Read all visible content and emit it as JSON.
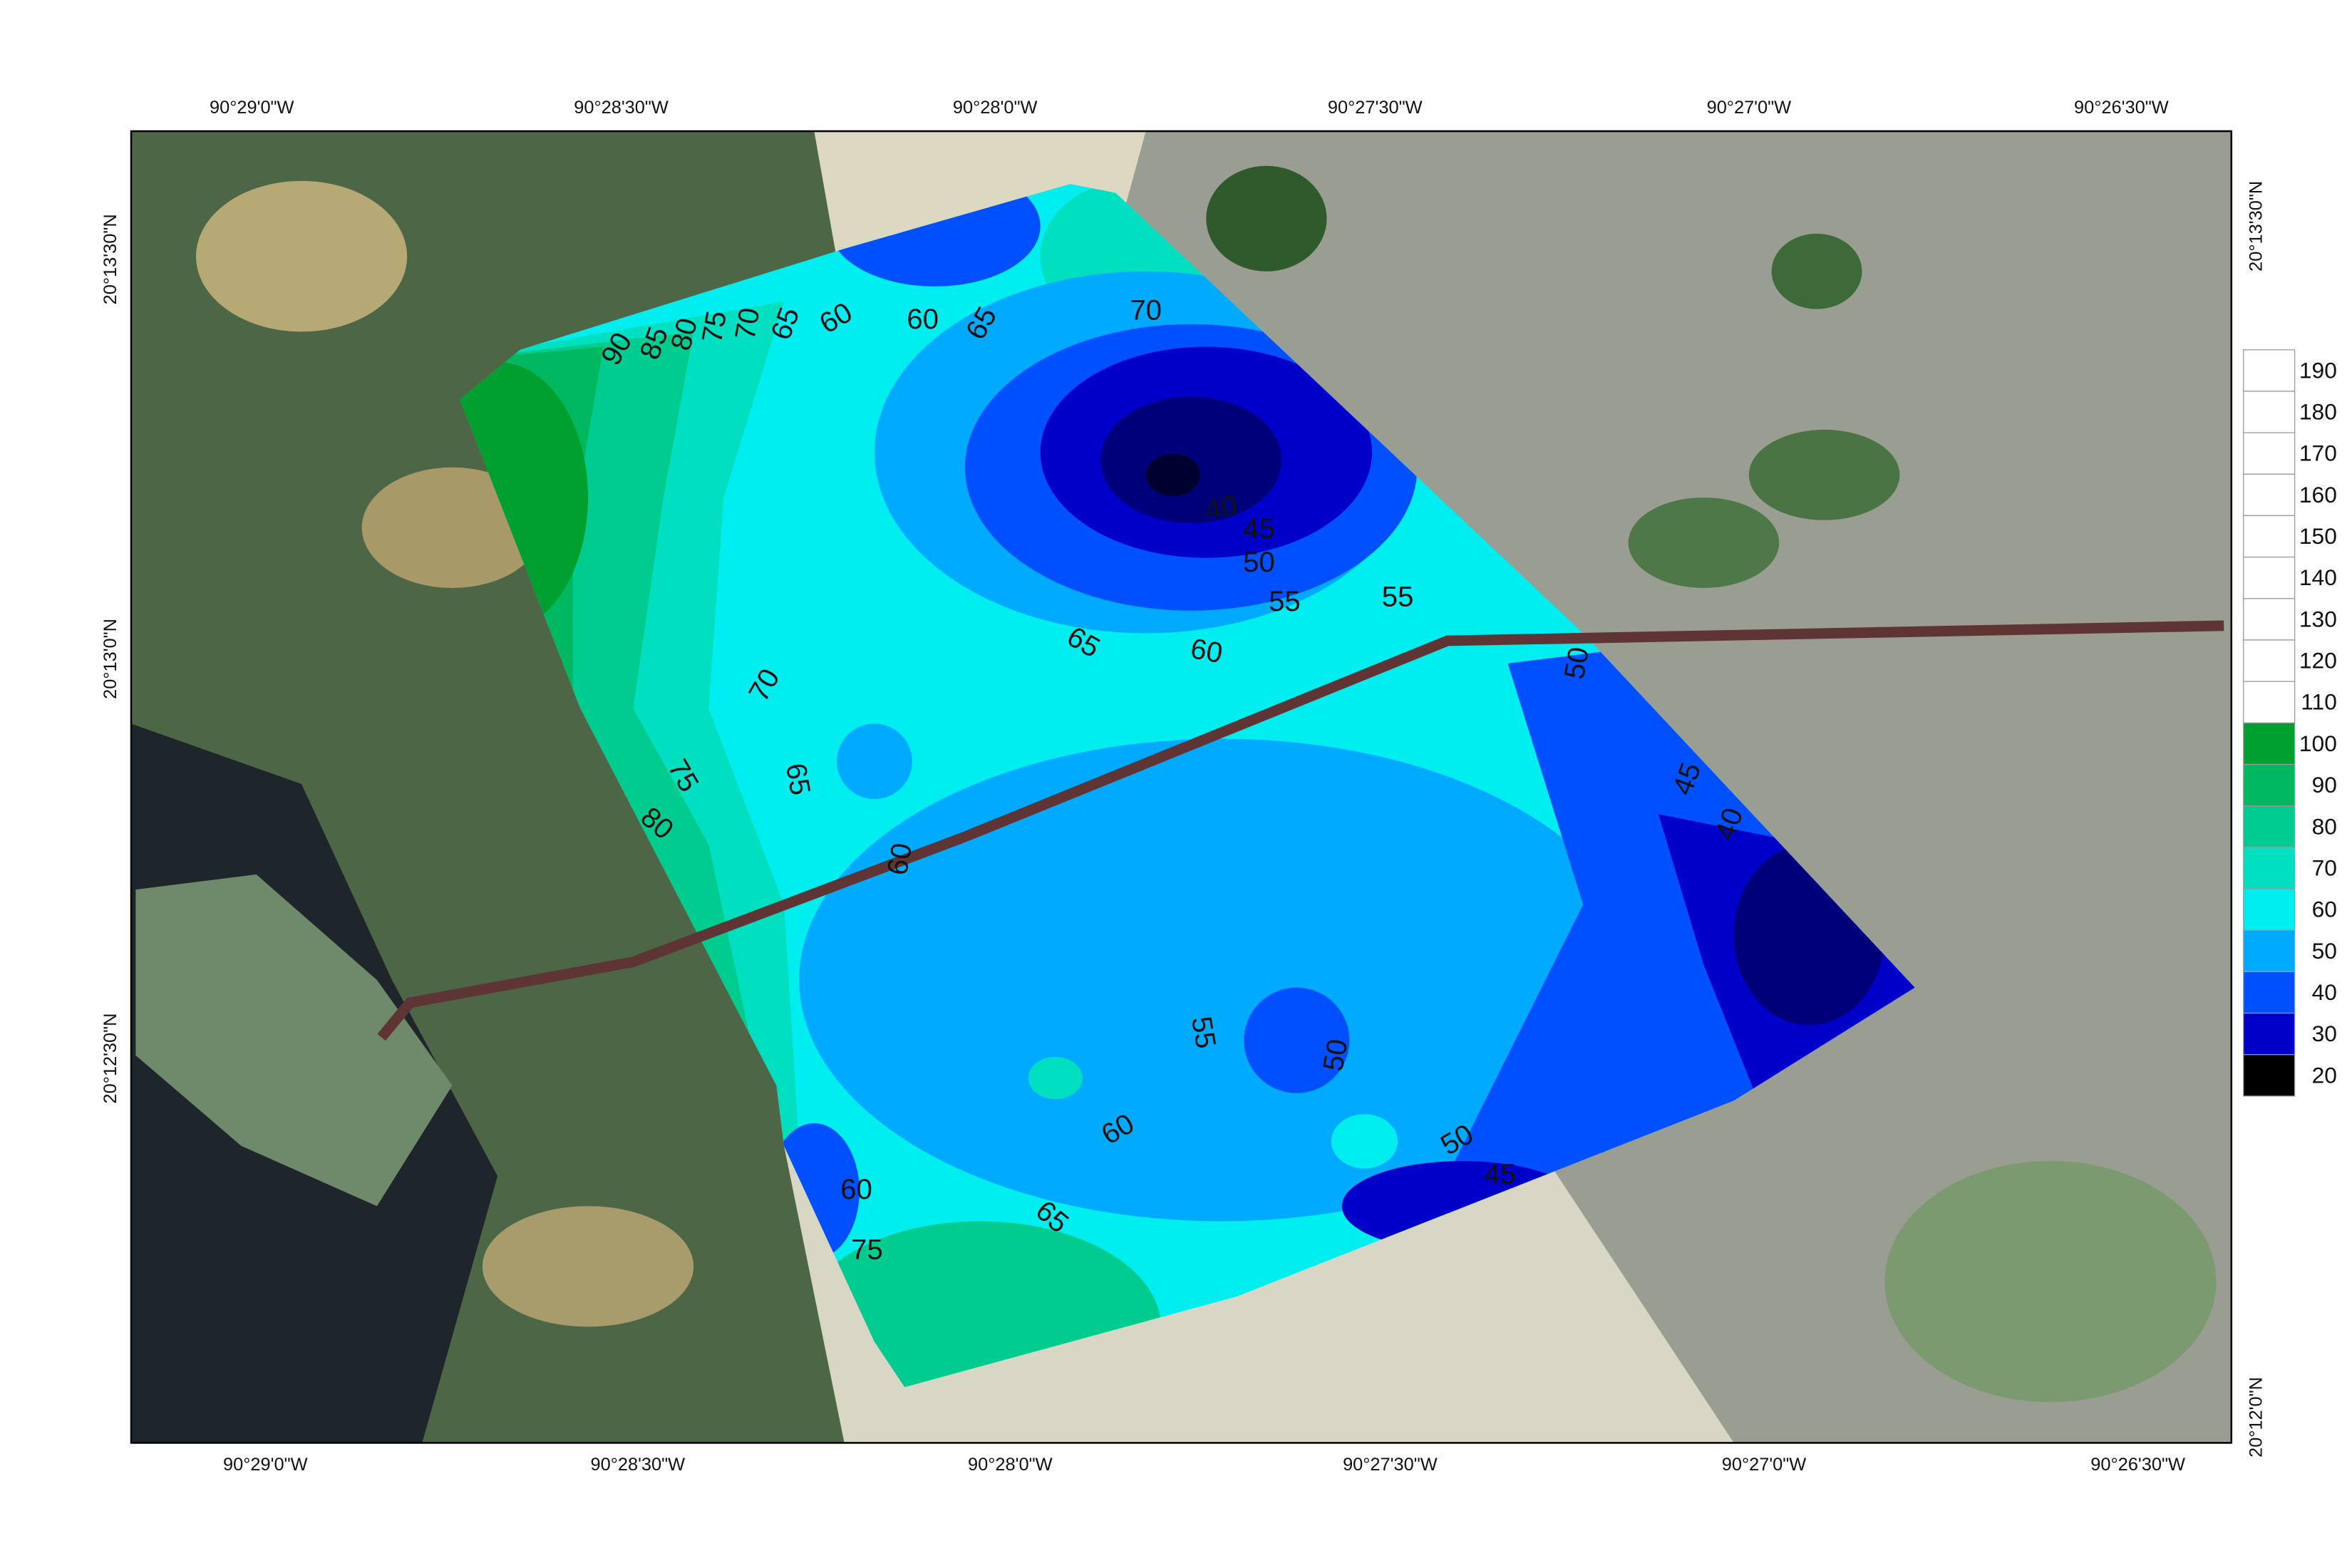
{
  "map": {
    "top_longitude_labels": [
      "90°29'0\"W",
      "90°28'30\"W",
      "90°28'0\"W",
      "90°27'30\"W",
      "90°27'0\"W",
      "90°26'30\"W"
    ],
    "bottom_longitude_labels": [
      "90°29'0\"W",
      "90°28'30\"W",
      "90°28'0\"W",
      "90°27'30\"W",
      "90°27'0\"W",
      "90°26'30\"W"
    ],
    "left_latitude_labels": [
      "20°13'30\"N",
      "20°13'0\"N",
      "20°12'30\"N"
    ],
    "right_latitude_labels": [
      "20°13'30\"N",
      "20°12'0\"N"
    ],
    "colorbar": {
      "labels": [
        190,
        180,
        170,
        160,
        150,
        140,
        130,
        120,
        110,
        100,
        90,
        80,
        70,
        60,
        50,
        40,
        30,
        20
      ],
      "colors": [
        "#ffffff",
        "#ffffff",
        "#ffffff",
        "#ffffff",
        "#ffffff",
        "#ffffff",
        "#ffffff",
        "#ffffff",
        "#ffffff",
        "#00a030",
        "#00b860",
        "#00cc90",
        "#00e0c0",
        "#00eef0",
        "#00aaff",
        "#0050ff",
        "#0000c8",
        "#000000"
      ]
    },
    "contour_labels": [
      90,
      85,
      80,
      75,
      70,
      65,
      60,
      60,
      65,
      70,
      40,
      45,
      50,
      55,
      55,
      65,
      60,
      70,
      65,
      75,
      80,
      60,
      50,
      45,
      40,
      55,
      50,
      60,
      50,
      45,
      65,
      60,
      75
    ]
  }
}
